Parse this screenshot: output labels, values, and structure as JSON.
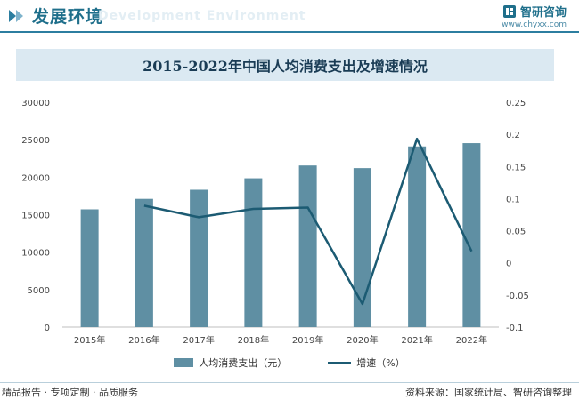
{
  "header": {
    "title": "发展环境",
    "watermark": "Development Environment",
    "brand_name": "智研咨询",
    "brand_url": "www.chyxx.com"
  },
  "chart_data": {
    "type": "bar",
    "title": "2015-2022年中国人均消费支出及增速情况",
    "categories": [
      "2015年",
      "2016年",
      "2017年",
      "2018年",
      "2019年",
      "2020年",
      "2021年",
      "2022年"
    ],
    "series": [
      {
        "name": "人均消费支出（元）",
        "type": "bar",
        "axis": "left",
        "values": [
          15712,
          17111,
          18322,
          19853,
          21559,
          21210,
          24100,
          24538
        ]
      },
      {
        "name": "增速（%）",
        "type": "line",
        "axis": "right",
        "values": [
          null,
          0.089,
          0.071,
          0.084,
          0.086,
          -0.064,
          0.193,
          0.018
        ]
      }
    ],
    "y_left": {
      "min": 0,
      "max": 30000,
      "ticks": [
        "0",
        "5000",
        "10000",
        "15000",
        "20000",
        "25000",
        "30000"
      ]
    },
    "y_right": {
      "min": -0.1,
      "max": 0.25,
      "ticks": [
        "-0.1",
        "-0.05",
        "0",
        "0.05",
        "0.1",
        "0.15",
        "0.2",
        "0.25"
      ]
    },
    "grid": false,
    "legend_position": "bottom"
  },
  "colors": {
    "bar": "#5f8fa3",
    "line": "#1c5b73",
    "accent": "#1f6f8b"
  },
  "footer": {
    "left": "精品报告 · 专项定制 · 品质服务",
    "right": "资料来源：国家统计局、智研咨询整理"
  }
}
